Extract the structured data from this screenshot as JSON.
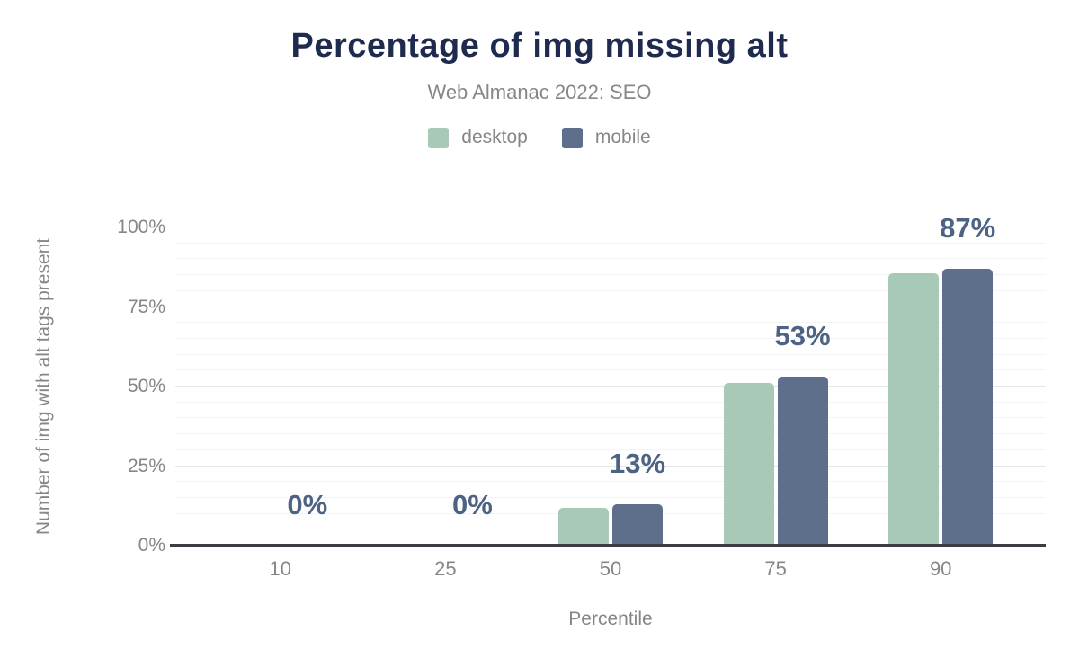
{
  "chart_data": {
    "type": "bar",
    "title": "Percentage of img missing alt",
    "subtitle": "Web Almanac 2022: SEO",
    "xlabel": "Percentile",
    "ylabel": "Number of img with alt tags present",
    "categories": [
      "10",
      "25",
      "50",
      "75",
      "90"
    ],
    "series": [
      {
        "name": "desktop",
        "color": "#a9c9b8",
        "values": [
          0,
          0,
          12,
          51,
          85.5
        ]
      },
      {
        "name": "mobile",
        "color": "#5e6f8b",
        "values": [
          0,
          0,
          13,
          53,
          87
        ]
      }
    ],
    "value_labels": [
      "0%",
      "0%",
      "13%",
      "53%",
      "87%"
    ],
    "y_ticks": [
      {
        "pct": 0,
        "label": "0%"
      },
      {
        "pct": 25,
        "label": "25%"
      },
      {
        "pct": 50,
        "label": "50%"
      },
      {
        "pct": 75,
        "label": "75%"
      },
      {
        "pct": 100,
        "label": "100%"
      }
    ],
    "ylim": [
      0,
      100
    ],
    "grid": {
      "visible": true,
      "minor_step": 5,
      "major_step": 25
    },
    "legend_position": "top",
    "styles": {
      "title_color": "#1f2b4e",
      "subtitle_color": "#85888b",
      "axis_text_color": "#84878a",
      "value_label_color": "#4d6384",
      "axis_line_color": "#3a3e44"
    }
  }
}
